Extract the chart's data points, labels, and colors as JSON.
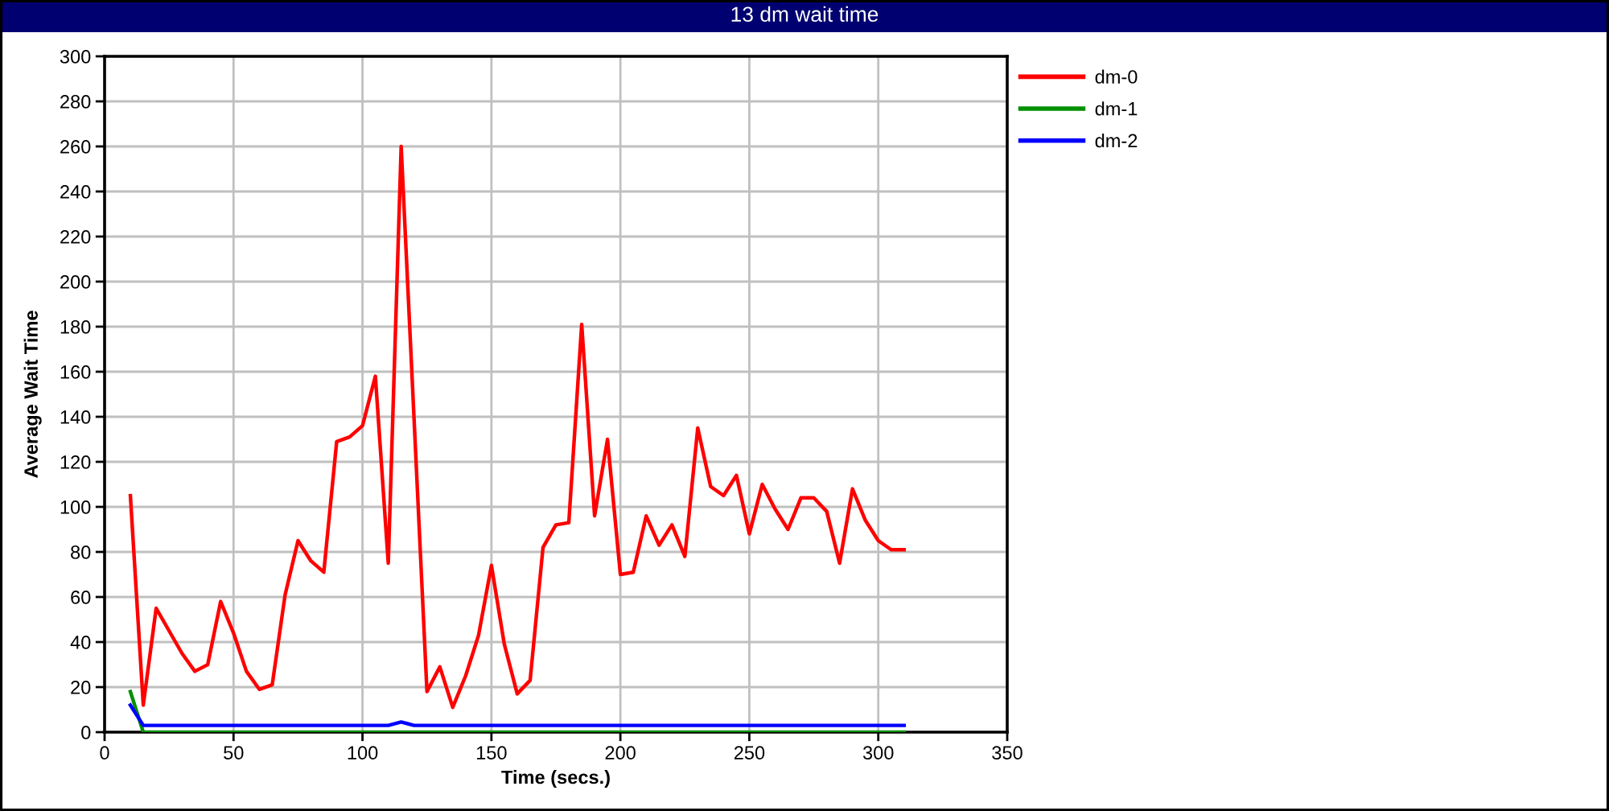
{
  "chart_data": {
    "type": "line",
    "title": "13 dm wait time",
    "xlabel": "Time (secs.)",
    "ylabel": "Average Wait Time",
    "x": [
      10,
      15,
      20,
      25,
      30,
      35,
      40,
      45,
      50,
      55,
      60,
      65,
      70,
      75,
      80,
      85,
      90,
      95,
      100,
      105,
      110,
      115,
      120,
      125,
      130,
      135,
      140,
      145,
      150,
      155,
      160,
      165,
      170,
      175,
      180,
      185,
      190,
      195,
      200,
      205,
      210,
      215,
      220,
      225,
      230,
      235,
      240,
      245,
      250,
      255,
      260,
      265,
      270,
      275,
      280,
      285,
      290,
      295,
      300,
      305,
      310
    ],
    "series": [
      {
        "name": "dm-0",
        "color": "#ff0000",
        "values": [
          105,
          12,
          55,
          45,
          35,
          27,
          30,
          58,
          44,
          27,
          19,
          21,
          61,
          85,
          76,
          71,
          129,
          131,
          136,
          158,
          75,
          260,
          139,
          18,
          29,
          11,
          25,
          43,
          74,
          39,
          17,
          23,
          82,
          92,
          93,
          181,
          96,
          130,
          70,
          71,
          96,
          83,
          92,
          78,
          135,
          109,
          105,
          114,
          88,
          110,
          99,
          90,
          104,
          104,
          98,
          75,
          108,
          94,
          85,
          81,
          81
        ]
      },
      {
        "name": "dm-1",
        "color": "#009000",
        "values": [
          18,
          0,
          0,
          0,
          0,
          0,
          0,
          0,
          0,
          0,
          0,
          0,
          0,
          0,
          0,
          0,
          0,
          0,
          0,
          0,
          0,
          0,
          0,
          0,
          0,
          0,
          0,
          0,
          0,
          0,
          0,
          0,
          0,
          0,
          0,
          0,
          0,
          0,
          0,
          0,
          0,
          0,
          0,
          0,
          0,
          0,
          0,
          0,
          0,
          0,
          0,
          0,
          0,
          0,
          0,
          0,
          0,
          0,
          0,
          0,
          0
        ]
      },
      {
        "name": "dm-2",
        "color": "#0000ff",
        "values": [
          12,
          3,
          3,
          3,
          3,
          3,
          3,
          3,
          3,
          3,
          3,
          3,
          3,
          3,
          3,
          3,
          3,
          3,
          3,
          3,
          3,
          4.5,
          3,
          3,
          3,
          3,
          3,
          3,
          3,
          3,
          3,
          3,
          3,
          3,
          3,
          3,
          3,
          3,
          3,
          3,
          3,
          3,
          3,
          3,
          3,
          3,
          3,
          3,
          3,
          3,
          3,
          3,
          3,
          3,
          3,
          3,
          3,
          3,
          3,
          3,
          3
        ]
      }
    ],
    "xlim": [
      0,
      350
    ],
    "xticks": [
      0,
      50,
      100,
      150,
      200,
      250,
      300,
      350
    ],
    "ylim": [
      0,
      300
    ],
    "yticks": [
      0,
      20,
      40,
      60,
      80,
      100,
      120,
      140,
      160,
      180,
      200,
      220,
      240,
      260,
      280,
      300
    ],
    "grid": true,
    "legend": "top right",
    "line_style": "solid"
  }
}
